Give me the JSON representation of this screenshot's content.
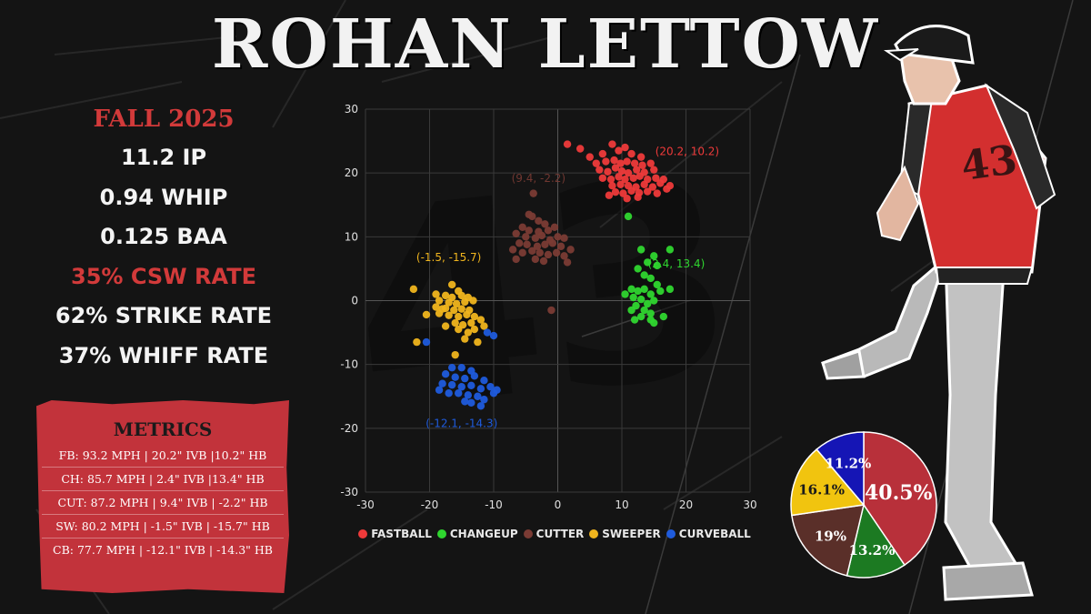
{
  "title": "ROHAN LETTOW",
  "jersey_number": "43",
  "season": "FALL 2025",
  "stats": [
    {
      "text": "11.2 IP",
      "color": "#f4f4f4"
    },
    {
      "text": "0.94 WHIP",
      "color": "#f4f4f4"
    },
    {
      "text": "0.125 BAA",
      "color": "#f4f4f4"
    },
    {
      "text": "35% CSW RATE",
      "color": "#d23a3a"
    },
    {
      "text": "62% STRIKE RATE",
      "color": "#f4f4f4"
    },
    {
      "text": "37% WHIFF RATE",
      "color": "#f4f4f4"
    }
  ],
  "metrics": {
    "title": "METRICS",
    "rows": [
      "FB: 93.2 MPH  |  20.2\" IVB  |10.2\" HB",
      "CH: 85.7 MPH  |  2.4\" IVB  |13.4\" HB",
      "CUT: 87.2 MPH  |  9.4\" IVB  | -2.2\" HB",
      "SW: 80.2 MPH  |  -1.5\" IVB  |  -15.7\" HB",
      "CB: 77.7 MPH |  -12.1\" IVB  |  -14.3\" HB"
    ]
  },
  "chart_data": [
    {
      "type": "scatter",
      "title": "",
      "xlabel": "",
      "ylabel": "",
      "xlim": [
        -30,
        30
      ],
      "ylim": [
        -30,
        30
      ],
      "xticks": [
        -30,
        -20,
        -10,
        0,
        10,
        20,
        30
      ],
      "yticks": [
        -30,
        -20,
        -10,
        0,
        10,
        20,
        30
      ],
      "grid": true,
      "legend_position": "bottom",
      "series": [
        {
          "name": "FASTBALL",
          "color": "#ee3a3a",
          "annotation": "(20.2, 10.2)",
          "points": [
            [
              1.5,
              24.5
            ],
            [
              3.5,
              23.8
            ],
            [
              5,
              22.5
            ],
            [
              7,
              23
            ],
            [
              8.5,
              24.5
            ],
            [
              9.5,
              23.5
            ],
            [
              10.5,
              24
            ],
            [
              11.5,
              23
            ],
            [
              13,
              22.5
            ],
            [
              6,
              21.5
            ],
            [
              7.5,
              21.8
            ],
            [
              8.8,
              22
            ],
            [
              9.8,
              21.5
            ],
            [
              10.8,
              21.8
            ],
            [
              12,
              21.5
            ],
            [
              13.2,
              21.2
            ],
            [
              14.5,
              21.5
            ],
            [
              6.5,
              20.5
            ],
            [
              7.8,
              20.2
            ],
            [
              9,
              20.8
            ],
            [
              10,
              20.3
            ],
            [
              11,
              20
            ],
            [
              12.3,
              20.5
            ],
            [
              13.5,
              20.1
            ],
            [
              15,
              20.5
            ],
            [
              7,
              19.2
            ],
            [
              8.3,
              19
            ],
            [
              9.5,
              19.4
            ],
            [
              10.5,
              19
            ],
            [
              11.8,
              19.2
            ],
            [
              12.8,
              19.5
            ],
            [
              14,
              19
            ],
            [
              15.3,
              19.2
            ],
            [
              16.5,
              19
            ],
            [
              8.5,
              18
            ],
            [
              9.8,
              18.2
            ],
            [
              11,
              18
            ],
            [
              12.2,
              17.8
            ],
            [
              13.5,
              18.2
            ],
            [
              14.8,
              17.8
            ],
            [
              16,
              18.4
            ],
            [
              17.5,
              18
            ],
            [
              9,
              17
            ],
            [
              10.2,
              16.8
            ],
            [
              11.5,
              17.2
            ],
            [
              12.7,
              16.9
            ],
            [
              14,
              17.1
            ],
            [
              15.5,
              16.8
            ],
            [
              17,
              17.5
            ],
            [
              8,
              16.5
            ],
            [
              10.8,
              16
            ],
            [
              12.5,
              16.2
            ]
          ]
        },
        {
          "name": "CHANGEUP",
          "color": "#2fd62f",
          "annotation": "(2.4, 13.4)",
          "points": [
            [
              11,
              13.2
            ],
            [
              13,
              8
            ],
            [
              15,
              7
            ],
            [
              17.5,
              8
            ],
            [
              14,
              6
            ],
            [
              12.5,
              5
            ],
            [
              15.5,
              5.5
            ],
            [
              13.5,
              4
            ],
            [
              14.5,
              3.5
            ],
            [
              15.5,
              2.5
            ],
            [
              11.5,
              1.8
            ],
            [
              12.5,
              1.5
            ],
            [
              13.5,
              1.8
            ],
            [
              14.5,
              1
            ],
            [
              16,
              1.5
            ],
            [
              17.5,
              1.8
            ],
            [
              10.5,
              1
            ],
            [
              11.8,
              0.5
            ],
            [
              13,
              0.2
            ],
            [
              14,
              -0.5
            ],
            [
              15,
              0
            ],
            [
              12.2,
              -0.8
            ],
            [
              13.5,
              -1.5
            ],
            [
              11.5,
              -1.5
            ],
            [
              14.5,
              -2
            ],
            [
              13,
              -2.5
            ],
            [
              12,
              -3
            ],
            [
              14.5,
              -3
            ],
            [
              16.5,
              -2.5
            ],
            [
              15,
              -3.5
            ]
          ]
        },
        {
          "name": "CUTTER",
          "color": "#7a3b34",
          "annotation": "(9.4, -2.2)",
          "points": [
            [
              -3.8,
              16.8
            ],
            [
              -4,
              13.2
            ],
            [
              -3,
              12.5
            ],
            [
              -2,
              12
            ],
            [
              -5.5,
              11.5
            ],
            [
              -4.5,
              11
            ],
            [
              -3,
              10.8
            ],
            [
              -1.5,
              11
            ],
            [
              -0.5,
              11.5
            ],
            [
              -6.5,
              10.5
            ],
            [
              -5,
              10
            ],
            [
              -3.5,
              9.8
            ],
            [
              -2.5,
              10.2
            ],
            [
              -1.2,
              9.5
            ],
            [
              0,
              10
            ],
            [
              1,
              9.8
            ],
            [
              -6,
              9
            ],
            [
              -4.8,
              8.8
            ],
            [
              -3.2,
              8.5
            ],
            [
              -2,
              8.8
            ],
            [
              -0.8,
              9
            ],
            [
              0.5,
              8.5
            ],
            [
              2,
              8
            ],
            [
              -7,
              8
            ],
            [
              -5.5,
              7.5
            ],
            [
              -4,
              7.8
            ],
            [
              -2.8,
              7.5
            ],
            [
              -1.5,
              7.2
            ],
            [
              -0.2,
              7.5
            ],
            [
              1,
              7
            ],
            [
              -3.5,
              6.5
            ],
            [
              -2.2,
              6.2
            ],
            [
              -6.5,
              6.5
            ],
            [
              1.5,
              6
            ],
            [
              -4.5,
              13.5
            ],
            [
              -1,
              -1.5
            ]
          ]
        },
        {
          "name": "SWEEPER",
          "color": "#f0b51e",
          "annotation": "(-1.5, -15.7)",
          "points": [
            [
              -22.5,
              1.8
            ],
            [
              -18,
              -1.3
            ],
            [
              -16.5,
              2.5
            ],
            [
              -15.5,
              1.5
            ],
            [
              -19,
              1
            ],
            [
              -17.5,
              0.8
            ],
            [
              -16.5,
              0.5
            ],
            [
              -15,
              0.8
            ],
            [
              -14,
              0.5
            ],
            [
              -18.5,
              0
            ],
            [
              -17,
              -0.3
            ],
            [
              -15.8,
              -0.5
            ],
            [
              -14.5,
              -0.2
            ],
            [
              -13.2,
              0
            ],
            [
              -19,
              -1
            ],
            [
              -17.5,
              -1.2
            ],
            [
              -16.2,
              -1.5
            ],
            [
              -15,
              -1.3
            ],
            [
              -13.8,
              -1.5
            ],
            [
              -18.5,
              -2
            ],
            [
              -17,
              -2.3
            ],
            [
              -15.5,
              -2.5
            ],
            [
              -14.2,
              -2.2
            ],
            [
              -13,
              -2.5
            ],
            [
              -16,
              -3.5
            ],
            [
              -14.8,
              -3.8
            ],
            [
              -13.5,
              -3.5
            ],
            [
              -12,
              -3
            ],
            [
              -17.5,
              -4
            ],
            [
              -15.5,
              -4.5
            ],
            [
              -14,
              -5
            ],
            [
              -13,
              -4.5
            ],
            [
              -14.5,
              -6
            ],
            [
              -12.5,
              -6.5
            ],
            [
              -11.5,
              -4
            ],
            [
              -20.5,
              -2.2
            ],
            [
              -16,
              -8.5
            ],
            [
              -22,
              -6.5
            ]
          ]
        },
        {
          "name": "CURVEBALL",
          "color": "#1f5bdc",
          "annotation": "(-12.1, -14.3)",
          "points": [
            [
              -20.5,
              -6.5
            ],
            [
              -16.5,
              -10.5
            ],
            [
              -15,
              -10.5
            ],
            [
              -13.5,
              -11
            ],
            [
              -17.5,
              -11.5
            ],
            [
              -16,
              -12
            ],
            [
              -14.5,
              -12.2
            ],
            [
              -13,
              -11.8
            ],
            [
              -11.5,
              -12.5
            ],
            [
              -18,
              -13
            ],
            [
              -16.5,
              -13.2
            ],
            [
              -15,
              -13.5
            ],
            [
              -13.5,
              -13.3
            ],
            [
              -12,
              -13.8
            ],
            [
              -10.5,
              -13.5
            ],
            [
              -18.5,
              -14
            ],
            [
              -17,
              -14.5
            ],
            [
              -15.5,
              -14.5
            ],
            [
              -14,
              -14.8
            ],
            [
              -12.5,
              -15
            ],
            [
              -10,
              -14.5
            ],
            [
              -9.5,
              -14
            ],
            [
              -13.5,
              -16
            ],
            [
              -12,
              -16.5
            ],
            [
              -11,
              -5
            ],
            [
              -10,
              -5.5
            ],
            [
              -11.5,
              -15.5
            ],
            [
              -14.5,
              -15.8
            ]
          ]
        }
      ]
    },
    {
      "type": "pie",
      "title": "",
      "start_angle_deg": 0,
      "direction": "clockwise",
      "slices": [
        {
          "label": "40.5%",
          "value": 40.5,
          "color": "#b8303a"
        },
        {
          "label": "13.2%",
          "value": 13.2,
          "color": "#1c7a22"
        },
        {
          "label": "19%",
          "value": 19.0,
          "color": "#5a2f29"
        },
        {
          "label": "16.1%",
          "value": 16.1,
          "color": "#f1c40f"
        },
        {
          "label": "11.2%",
          "value": 11.2,
          "color": "#1515b5"
        }
      ]
    }
  ]
}
